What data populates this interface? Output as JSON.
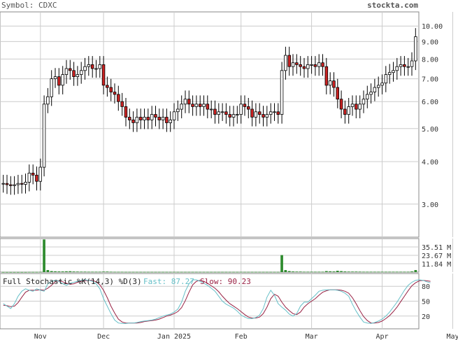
{
  "header": {
    "symbol_label": "Symbol: CDXC",
    "brand": "stockta.com"
  },
  "colors": {
    "up": "#ffffff",
    "down": "#cc2222",
    "wick": "#000000",
    "grid": "#cccccc",
    "volume": "#2e8b2e",
    "fast": "#66c0c8",
    "slow": "#992244"
  },
  "chart_data": [
    {
      "type": "candlestick",
      "name": "price",
      "y_scale": "log",
      "ylim": [
        2.4,
        11.0
      ],
      "y_ticks": [
        "3.00",
        "4.00",
        "5.00",
        "6.00",
        "7.00",
        "8.00",
        "9.00",
        "10.00"
      ],
      "x_labels": [
        "Nov",
        "Dec",
        "Jan 2025",
        "Feb",
        "Mar",
        "Apr",
        "May"
      ],
      "x_label_index": [
        10,
        27,
        46,
        64,
        83,
        102,
        121
      ],
      "close": [
        3.45,
        3.42,
        3.4,
        3.42,
        3.45,
        3.43,
        3.48,
        3.7,
        3.65,
        3.5,
        3.85,
        5.9,
        6.2,
        7.0,
        7.1,
        6.7,
        7.2,
        7.5,
        7.4,
        7.1,
        7.2,
        7.4,
        7.6,
        7.7,
        7.5,
        7.5,
        7.7,
        6.7,
        6.6,
        6.4,
        6.3,
        6.0,
        5.8,
        5.4,
        5.3,
        5.2,
        5.4,
        5.3,
        5.4,
        5.3,
        5.5,
        5.4,
        5.3,
        5.4,
        5.2,
        5.3,
        5.6,
        5.7,
        5.9,
        6.1,
        5.9,
        5.8,
        5.9,
        5.8,
        5.9,
        5.7,
        5.7,
        5.5,
        5.6,
        5.6,
        5.5,
        5.4,
        5.5,
        5.5,
        5.9,
        5.8,
        5.7,
        5.4,
        5.6,
        5.5,
        5.4,
        5.5,
        5.6,
        5.6,
        5.5,
        7.4,
        8.2,
        7.6,
        7.8,
        7.7,
        7.6,
        7.5,
        7.7,
        7.7,
        7.6,
        7.8,
        7.6,
        6.7,
        6.9,
        6.6,
        6.1,
        5.7,
        5.5,
        5.8,
        5.9,
        5.7,
        5.9,
        6.1,
        6.3,
        6.4,
        6.6,
        6.7,
        6.8,
        7.2,
        7.3,
        7.4,
        7.6,
        7.7,
        7.6,
        7.6,
        7.9,
        9.3
      ],
      "open": [
        3.45,
        3.45,
        3.42,
        3.4,
        3.42,
        3.45,
        3.43,
        3.48,
        3.7,
        3.65,
        3.5,
        3.85,
        5.9,
        6.2,
        7.0,
        7.1,
        6.7,
        7.2,
        7.5,
        7.4,
        7.1,
        7.2,
        7.4,
        7.6,
        7.7,
        7.5,
        7.5,
        7.7,
        6.7,
        6.6,
        6.4,
        6.3,
        6.0,
        5.8,
        5.4,
        5.3,
        5.2,
        5.4,
        5.3,
        5.4,
        5.3,
        5.5,
        5.4,
        5.3,
        5.4,
        5.2,
        5.3,
        5.6,
        5.7,
        5.9,
        6.1,
        5.9,
        5.8,
        5.9,
        5.8,
        5.9,
        5.7,
        5.7,
        5.5,
        5.6,
        5.6,
        5.5,
        5.4,
        5.5,
        5.5,
        5.9,
        5.8,
        5.7,
        5.4,
        5.6,
        5.5,
        5.4,
        5.5,
        5.6,
        5.6,
        5.5,
        7.4,
        8.2,
        7.6,
        7.8,
        7.7,
        7.6,
        7.5,
        7.7,
        7.7,
        7.6,
        7.8,
        7.6,
        6.7,
        6.9,
        6.6,
        6.1,
        5.7,
        5.5,
        5.8,
        5.9,
        5.7,
        5.9,
        6.1,
        6.3,
        6.4,
        6.6,
        6.7,
        6.8,
        7.2,
        7.3,
        7.4,
        7.6,
        7.7,
        7.6,
        7.6,
        7.9
      ],
      "high_pad": 0.06,
      "low_pad": 0.06
    },
    {
      "type": "bar",
      "name": "volume",
      "y_ticks": [
        "35.51 M",
        "23.67 M",
        "11.84 M"
      ],
      "ylim": [
        0,
        47.3
      ],
      "values": [
        0.2,
        0.2,
        0.2,
        0.2,
        0.2,
        0.2,
        0.2,
        0.3,
        0.3,
        0.3,
        0.4,
        46.0,
        3.0,
        1.5,
        1.2,
        1.0,
        1.0,
        1.2,
        1.3,
        0.9,
        0.8,
        0.7,
        0.7,
        0.6,
        0.6,
        0.6,
        0.6,
        0.8,
        0.8,
        0.6,
        0.5,
        0.5,
        0.5,
        0.4,
        0.4,
        0.4,
        0.4,
        0.4,
        0.4,
        0.4,
        0.4,
        0.4,
        0.4,
        0.4,
        0.4,
        0.4,
        0.4,
        0.4,
        0.4,
        0.4,
        0.4,
        0.4,
        0.4,
        0.4,
        0.4,
        0.4,
        0.4,
        0.4,
        0.4,
        0.4,
        0.4,
        0.4,
        0.4,
        0.4,
        0.4,
        0.4,
        0.4,
        0.4,
        0.4,
        0.4,
        0.4,
        0.4,
        0.4,
        0.4,
        0.4,
        24.0,
        3.0,
        1.5,
        1.0,
        0.8,
        0.8,
        0.6,
        0.6,
        0.6,
        0.6,
        0.6,
        0.6,
        1.5,
        1.2,
        1.0,
        2.0,
        1.5,
        1.0,
        0.8,
        0.8,
        0.8,
        0.7,
        0.6,
        0.6,
        0.6,
        0.6,
        0.6,
        0.6,
        0.6,
        0.6,
        0.6,
        0.6,
        0.6,
        0.6,
        0.6,
        1.0,
        3.0
      ]
    },
    {
      "type": "line",
      "name": "Full Stochastic %K(14,3) %D(3)",
      "title": "Full Stochastic %K(14,3) %D(3)",
      "fast_label": "Fast: 87.27",
      "slow_label": "Slow: 90.23",
      "y_ticks": [
        "80",
        "50",
        "20"
      ],
      "ylim": [
        0,
        100
      ],
      "fast": [
        45,
        40,
        35,
        45,
        60,
        70,
        75,
        72,
        70,
        75,
        72,
        70,
        85,
        90,
        92,
        90,
        85,
        82,
        86,
        88,
        90,
        92,
        93,
        92,
        90,
        85,
        75,
        55,
        40,
        25,
        12,
        6,
        5,
        5,
        6,
        6,
        7,
        9,
        10,
        11,
        12,
        14,
        17,
        20,
        22,
        24,
        28,
        34,
        48,
        70,
        85,
        93,
        93,
        90,
        86,
        82,
        76,
        70,
        60,
        50,
        44,
        40,
        36,
        30,
        22,
        18,
        15,
        15,
        17,
        22,
        35,
        58,
        72,
        62,
        45,
        38,
        32,
        24,
        20,
        25,
        40,
        48,
        48,
        55,
        62,
        70,
        72,
        73,
        73,
        73,
        72,
        70,
        66,
        60,
        44,
        30,
        18,
        8,
        6,
        5,
        7,
        10,
        14,
        20,
        28,
        38,
        48,
        60,
        72,
        82,
        88,
        92,
        93,
        92,
        89,
        87
      ],
      "slow": [
        42,
        41,
        39,
        40,
        47,
        58,
        68,
        72,
        72,
        72,
        73,
        72,
        76,
        82,
        89,
        91,
        89,
        86,
        84,
        85,
        88,
        90,
        91,
        92,
        92,
        89,
        83,
        72,
        57,
        40,
        26,
        14,
        8,
        6,
        6,
        6,
        6,
        7,
        9,
        10,
        11,
        12,
        14,
        17,
        20,
        22,
        25,
        29,
        37,
        51,
        68,
        83,
        90,
        92,
        90,
        86,
        81,
        76,
        69,
        60,
        52,
        45,
        40,
        35,
        29,
        23,
        18,
        16,
        16,
        18,
        25,
        38,
        55,
        64,
        60,
        48,
        38,
        31,
        25,
        23,
        28,
        38,
        45,
        50,
        55,
        62,
        68,
        71,
        73,
        73,
        73,
        72,
        70,
        66,
        57,
        45,
        31,
        19,
        11,
        6,
        6,
        7,
        10,
        15,
        21,
        29,
        38,
        49,
        60,
        71,
        81,
        87,
        91,
        92,
        91,
        90
      ]
    }
  ]
}
